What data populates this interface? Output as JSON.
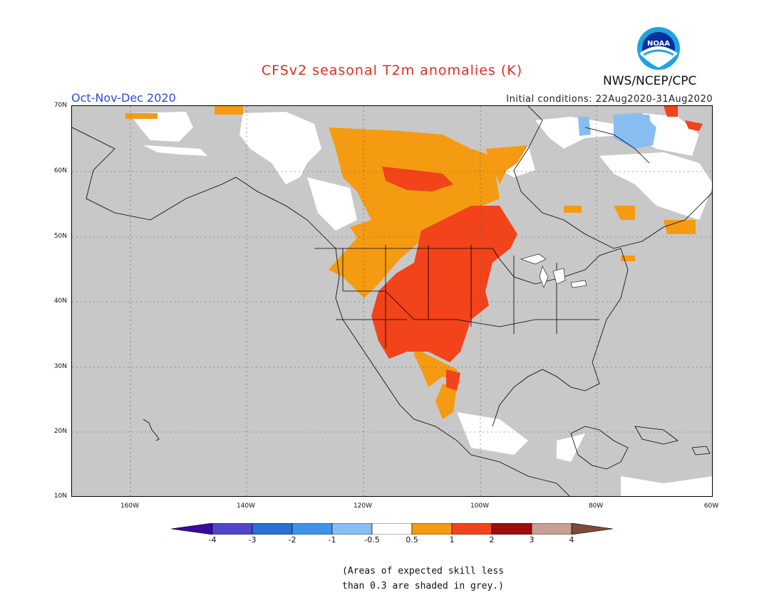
{
  "header": {
    "title": "CFSv2 seasonal T2m anomalies (K)",
    "period": "Oct-Nov-Dec 2020",
    "initial_conditions": "Initial conditions: 22Aug2020-31Aug2020",
    "agency": "NWS/NCEP/CPC",
    "logo_text": "NOAA"
  },
  "map": {
    "lat_labels": [
      "70N",
      "60N",
      "50N",
      "40N",
      "30N",
      "20N",
      "10N"
    ],
    "lon_labels": [
      "160W",
      "140W",
      "120W",
      "100W",
      "80W",
      "60W"
    ],
    "extent": {
      "lon": [
        -170,
        -60
      ],
      "lat": [
        10,
        70
      ]
    },
    "grey_meaning": "skill < 0.3",
    "colors": {
      "grey": "#c8c8c8",
      "white": "#ffffff",
      "orange": "#f59b11",
      "red_orange": "#f2431a",
      "light_blue": "#88bdf2"
    }
  },
  "colorbar": {
    "labels": [
      "-4",
      "-3",
      "-2",
      "-1",
      "-0.5",
      "0.5",
      "1",
      "2",
      "3",
      "4"
    ],
    "colors": [
      "#3a0b9e",
      "#5244cc",
      "#2b6fd8",
      "#3f94ea",
      "#86bff3",
      "#ffffff",
      "#f59b11",
      "#f2431a",
      "#a00c0c",
      "#c7a093",
      "#7d4a38"
    ]
  },
  "note": {
    "line1": "(Areas of expected skill less",
    "line2": "than 0.3 are shaded in grey.)"
  }
}
